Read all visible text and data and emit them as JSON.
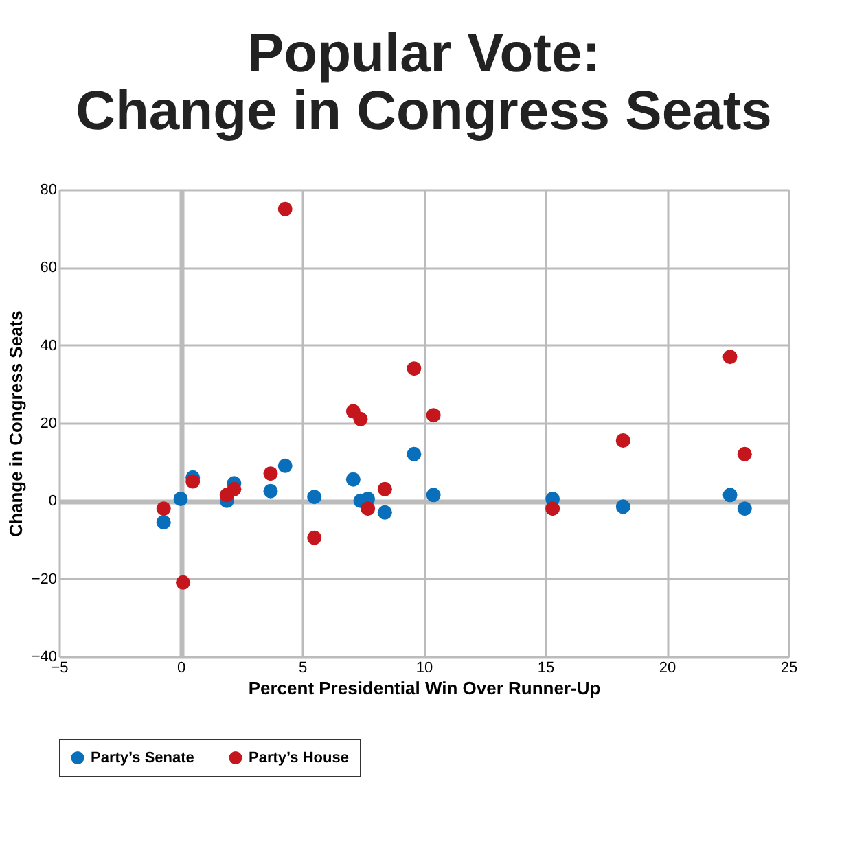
{
  "chart_data": {
    "type": "scatter",
    "title": [
      "Popular Vote:",
      "Change in Congress Seats"
    ],
    "xlabel": "Percent Presidential Win Over Runner-Up",
    "ylabel": "Change in Congress Seats",
    "xlim": [
      -5,
      25
    ],
    "xticks": [
      -5,
      0,
      5,
      10,
      15,
      20,
      25
    ],
    "ylim": [
      -40,
      80
    ],
    "yticks": [
      -40,
      -20,
      0,
      20,
      40,
      60,
      80
    ],
    "grid": true,
    "legend": "bottom",
    "marker": "circle",
    "series": [
      {
        "name": "Party’s Senate",
        "color": "#0a6fbb",
        "x": [
          -0.7,
          0,
          0.5,
          1.9,
          2.2,
          3.7,
          4.3,
          5.5,
          7.1,
          7.4,
          7.7,
          8.4,
          9.6,
          10.4,
          15.3,
          18.2,
          22.6,
          23.2
        ],
        "values": [
          -5.5,
          0.5,
          6,
          0,
          4.5,
          2.5,
          9,
          1,
          5.5,
          0,
          0.5,
          -3,
          12,
          1.5,
          0.5,
          -1.5,
          1.5,
          -2
        ]
      },
      {
        "name": "Party’s House",
        "color": "#c4161c",
        "x": [
          -0.7,
          0.1,
          0.5,
          1.9,
          2.2,
          3.7,
          4.3,
          5.5,
          7.1,
          7.4,
          7.7,
          8.4,
          9.6,
          10.4,
          15.3,
          18.2,
          22.6,
          23.2
        ],
        "values": [
          -2,
          -21,
          5,
          1.5,
          3,
          7,
          75,
          -9.5,
          23,
          21,
          -2,
          3,
          34,
          22,
          -2,
          15.5,
          37,
          12
        ]
      }
    ]
  }
}
